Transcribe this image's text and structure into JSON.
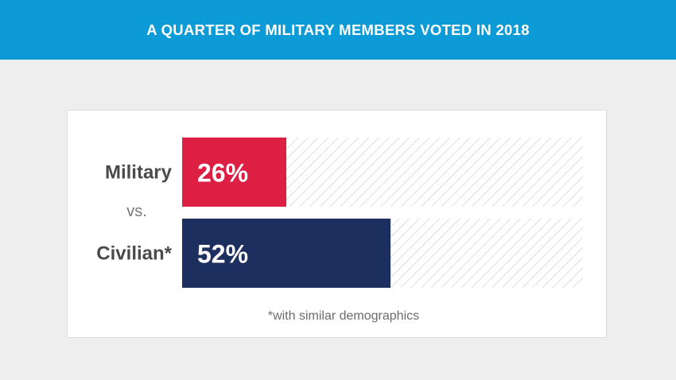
{
  "header": {
    "title": "A QUARTER OF MILITARY MEMBERS VOTED IN 2018"
  },
  "chart_data": {
    "type": "bar",
    "orientation": "horizontal",
    "categories": [
      "Military",
      "Civilian*"
    ],
    "values": [
      26,
      52
    ],
    "value_labels": [
      "26%",
      "52%"
    ],
    "separator": "vs.",
    "footnote": "*with similar demographics",
    "xlim": [
      0,
      100
    ],
    "colors": {
      "Military": "#dd1f44",
      "Civilian*": "#1c2f5e",
      "track_hatch": "#c9c9c9"
    }
  },
  "colors": {
    "header_bg": "#0d9bd7",
    "page_bg": "#efeeee",
    "card_bg": "#ffffff",
    "label": "#4a4a4a"
  }
}
